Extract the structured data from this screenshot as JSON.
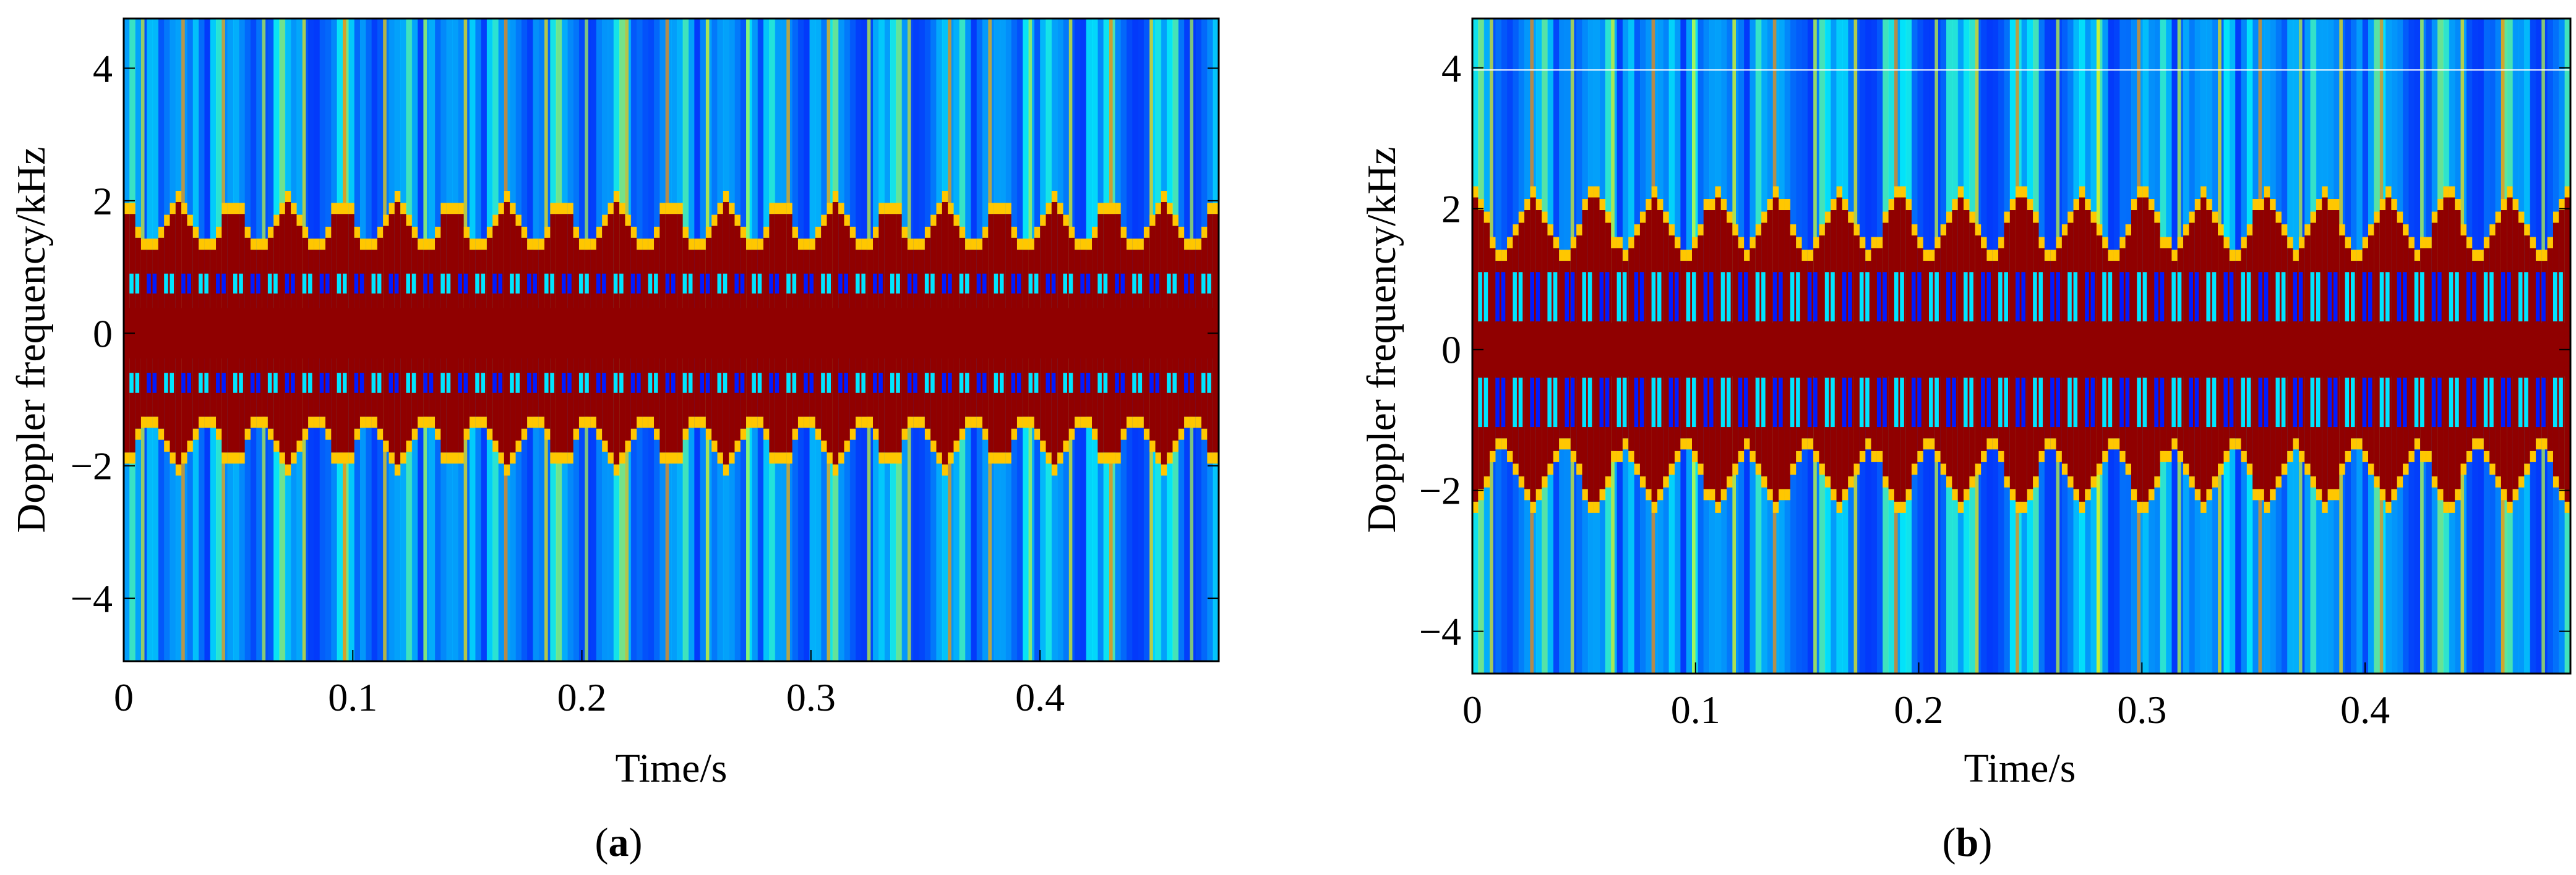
{
  "panels": [
    {
      "panel_label_prefix": "(",
      "panel_label": "a",
      "panel_label_suffix": ")"
    },
    {
      "panel_label_prefix": "(",
      "panel_label": "b",
      "panel_label_suffix": ")"
    }
  ],
  "chart_data": [
    {
      "type": "heatmap",
      "title": "",
      "xlabel": "Time/s",
      "ylabel": "Doppler frequency/kHz",
      "xlim": [
        0,
        0.478
      ],
      "ylim": [
        -4.95,
        4.75
      ],
      "xticks": [
        0,
        0.1,
        0.2,
        0.3,
        0.4
      ],
      "xtick_labels": [
        "0",
        "0.1",
        "0.2",
        "0.3",
        "0.4"
      ],
      "yticks": [
        -4,
        -2,
        0,
        2,
        4
      ],
      "ytick_labels": [
        "−4",
        "−2",
        "0",
        "2",
        "4"
      ],
      "colormap": "jet",
      "grid": false,
      "periods": 20,
      "micro_doppler_peak_khz": 1.9,
      "inner_band_khz": [
        0.6,
        0.9
      ],
      "background_color": "#1a3cdc",
      "saturated_color": "#900000",
      "white_line_khz": null
    },
    {
      "type": "heatmap",
      "title": "",
      "xlabel": "Time/s",
      "ylabel": "Doppler frequency/kHz",
      "xlim": [
        0,
        0.492
      ],
      "ylim": [
        -4.6,
        4.7
      ],
      "xticks": [
        0,
        0.1,
        0.2,
        0.3,
        0.4
      ],
      "xtick_labels": [
        "0",
        "0.1",
        "0.2",
        "0.3",
        "0.4"
      ],
      "yticks": [
        -4,
        -2,
        0,
        2,
        4
      ],
      "ytick_labels": [
        "−4",
        "−2",
        "0",
        "2",
        "4"
      ],
      "colormap": "jet",
      "grid": false,
      "periods": 18,
      "micro_doppler_peak_khz": 2.1,
      "inner_band_khz": [
        0.4,
        1.1
      ],
      "background_color": "#1a3cdc",
      "saturated_color": "#900000",
      "white_line_khz": 3.97
    }
  ]
}
